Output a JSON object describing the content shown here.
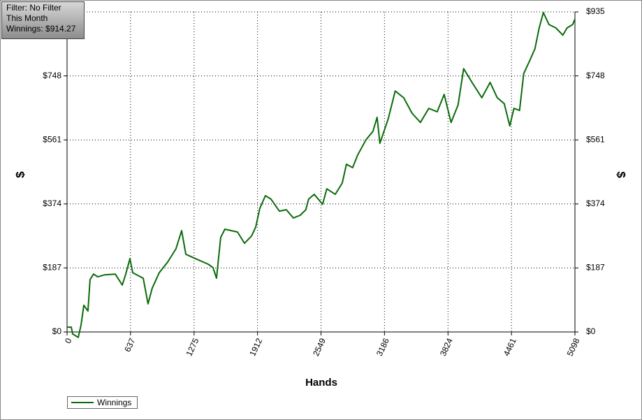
{
  "chart_data": {
    "type": "line",
    "annotations": [
      "Filter: No Filter",
      "This Month",
      "Winnings: $914.27"
    ],
    "xlabel": "Hands",
    "ylabel": "$",
    "x": [
      0,
      42,
      56,
      112,
      140,
      168,
      210,
      231,
      266,
      308,
      379,
      484,
      554,
      589,
      631,
      659,
      764,
      813,
      855,
      925,
      1009,
      1093,
      1150,
      1192,
      1290,
      1416,
      1465,
      1500,
      1542,
      1584,
      1711,
      1781,
      1851,
      1893,
      1935,
      1991,
      2047,
      2131,
      2201,
      2271,
      2341,
      2397,
      2425,
      2481,
      2565,
      2607,
      2692,
      2762,
      2804,
      2867,
      2916,
      3000,
      3070,
      3112,
      3140,
      3224,
      3294,
      3379,
      3463,
      3547,
      3631,
      3715,
      3785,
      3855,
      3925,
      3981,
      4065,
      4163,
      4247,
      4318,
      4388,
      4444,
      4486,
      4542,
      4584,
      4640,
      4696,
      4739,
      4781,
      4837,
      4907,
      4977,
      5019,
      5075,
      5098
    ],
    "series": [
      {
        "name": "Winnings",
        "color": "#0b6b0b",
        "values": [
          14,
          14,
          -6,
          -16,
          20,
          78,
          61,
          153,
          169,
          161,
          167,
          169,
          137,
          169,
          214,
          173,
          157,
          82,
          128,
          173,
          204,
          243,
          296,
          227,
          214,
          198,
          188,
          157,
          276,
          300,
          292,
          259,
          280,
          306,
          361,
          398,
          388,
          353,
          357,
          333,
          341,
          357,
          388,
          402,
          373,
          418,
          402,
          435,
          490,
          480,
          516,
          561,
          586,
          627,
          551,
          623,
          704,
          684,
          639,
          612,
          653,
          643,
          694,
          612,
          663,
          769,
          729,
          684,
          729,
          684,
          667,
          602,
          653,
          647,
          755,
          790,
          827,
          888,
          933,
          898,
          888,
          867,
          888,
          898,
          914.27
        ]
      }
    ],
    "xlim": [
      0,
      5098
    ],
    "xticks": [
      0,
      637,
      1275,
      1912,
      2549,
      3186,
      3824,
      4461,
      5098
    ],
    "ylim": [
      0,
      935
    ],
    "yticks": [
      {
        "value": 0,
        "label": "$0"
      },
      {
        "value": 187,
        "label": "$187"
      },
      {
        "value": 374,
        "label": "$374"
      },
      {
        "value": 561,
        "label": "$561"
      },
      {
        "value": 748,
        "label": "$748"
      },
      {
        "value": 935,
        "label": "$935"
      }
    ],
    "grid": true
  }
}
